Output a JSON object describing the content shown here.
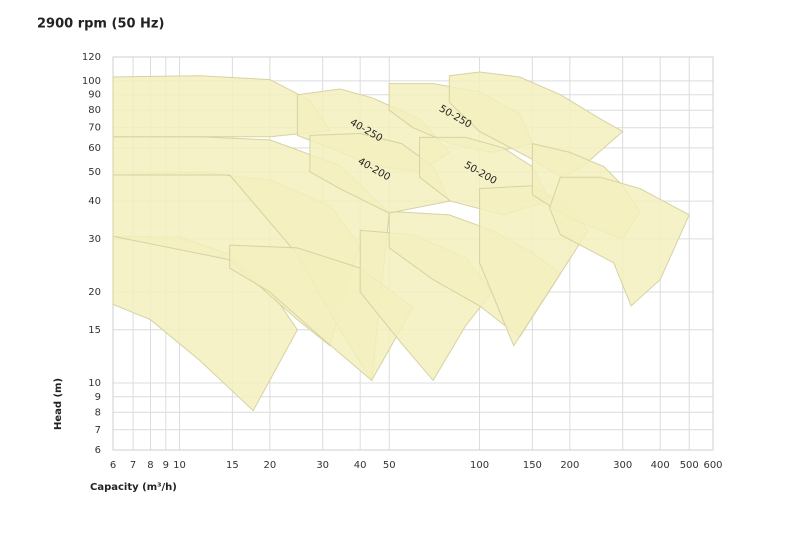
{
  "chart_data": {
    "type": "area",
    "title": "2900 rpm (50 Hz)",
    "xlabel": "Capacity (m³/h)",
    "ylabel": "Head (m)",
    "xscale": "log",
    "yscale": "log",
    "grid": true,
    "color": "#f3f0bd",
    "xlim": [
      6,
      600
    ],
    "xticks": [
      6,
      7,
      8,
      9,
      10,
      15,
      20,
      30,
      40,
      50,
      100,
      150,
      200,
      300,
      400,
      500,
      600
    ],
    "ylim": [
      6,
      120
    ],
    "yticks": [
      6,
      7,
      8,
      9,
      10,
      15,
      20,
      30,
      40,
      50,
      60,
      70,
      80,
      90,
      100,
      120
    ],
    "series": [
      {
        "x": [
          6,
          10,
          14.7,
          20,
          24.7,
          17.6,
          11.65,
          8,
          6
        ],
        "values": [
          30.6,
          30.4,
          26.6,
          20.4,
          15,
          8.1,
          11.9,
          16.2,
          18.2
        ]
      },
      {
        "x": [
          6,
          11.65,
          20,
          31.7,
          39.9,
          31.7,
          24.7,
          14.7,
          6
        ],
        "values": [
          48.8,
          49.9,
          47,
          38.7,
          28.6,
          13.3,
          16.2,
          25.6,
          30.6
        ]
      },
      {
        "x": [
          6,
          11.65,
          20,
          34.2,
          50,
          43.7,
          34.2,
          24.7,
          14.7,
          6
        ],
        "values": [
          65.3,
          65.3,
          63.8,
          52.5,
          36.5,
          10.2,
          15,
          26.6,
          48.8,
          48.8
        ]
      },
      {
        "x": [
          6,
          11.65,
          20,
          27.2,
          31.7,
          20,
          6
        ],
        "values": [
          103,
          104,
          101,
          86.3,
          68.5,
          65.3,
          65.3
        ]
      },
      {
        "x": [
          14.7,
          24.7,
          40,
          60,
          43.7,
          30,
          20,
          14.7
        ],
        "values": [
          28.6,
          28,
          24,
          17.8,
          10.2,
          14,
          20,
          24
        ]
      },
      {
        "x": [
          40,
          60,
          90,
          110,
          90,
          70,
          55,
          40
        ],
        "values": [
          32,
          31,
          26,
          20,
          15.5,
          10.2,
          13.5,
          20
        ]
      },
      {
        "x": [
          50,
          79.3,
          110,
          150,
          186,
          136,
          100,
          70,
          50
        ],
        "values": [
          37,
          36,
          32,
          27,
          23,
          14.2,
          18,
          22,
          28
        ]
      },
      {
        "name": "40-250",
        "x": [
          24.7,
          34.2,
          43.7,
          63.1,
          79.3,
          63.1,
          43.7,
          31.7,
          24.7
        ],
        "values": [
          90,
          94,
          88,
          75,
          58,
          50,
          52.5,
          60,
          66
        ]
      },
      {
        "name": "40-200",
        "x": [
          27.2,
          40,
          55,
          70,
          79.3,
          50,
          34.2,
          27.2
        ],
        "values": [
          66,
          67,
          62,
          52,
          40,
          36.5,
          44,
          50
        ]
      },
      {
        "name": "50-250",
        "x": [
          50,
          70,
          99.8,
          136,
          150,
          110,
          80,
          60,
          50
        ],
        "values": [
          98,
          98,
          92,
          78,
          62,
          58,
          62,
          70,
          80
        ]
      },
      {
        "name": "50-200",
        "x": [
          63.1,
          90,
          120,
          150,
          171,
          120,
          80,
          63.1
        ],
        "values": [
          65,
          65,
          60,
          52,
          40,
          36,
          40,
          48
        ]
      },
      {
        "x": [
          100,
          150,
          200,
          230,
          186,
          130,
          100
        ],
        "values": [
          44,
          45,
          38,
          32,
          23,
          13.3,
          25
        ]
      },
      {
        "x": [
          79.3,
          100,
          136,
          186,
          252,
          300,
          220,
          186,
          150,
          100,
          79.3
        ],
        "values": [
          104,
          107,
          103,
          90,
          75,
          68,
          52,
          48,
          55,
          68,
          85
        ]
      },
      {
        "x": [
          150,
          200,
          260,
          300,
          343,
          300,
          200,
          150
        ],
        "values": [
          62,
          58,
          52,
          45,
          37,
          30,
          35,
          42
        ]
      },
      {
        "x": [
          186,
          252,
          343,
          500,
          400,
          320,
          280,
          186,
          171
        ],
        "values": [
          48,
          48,
          44,
          36,
          22,
          18,
          25,
          31,
          38
        ]
      }
    ]
  }
}
